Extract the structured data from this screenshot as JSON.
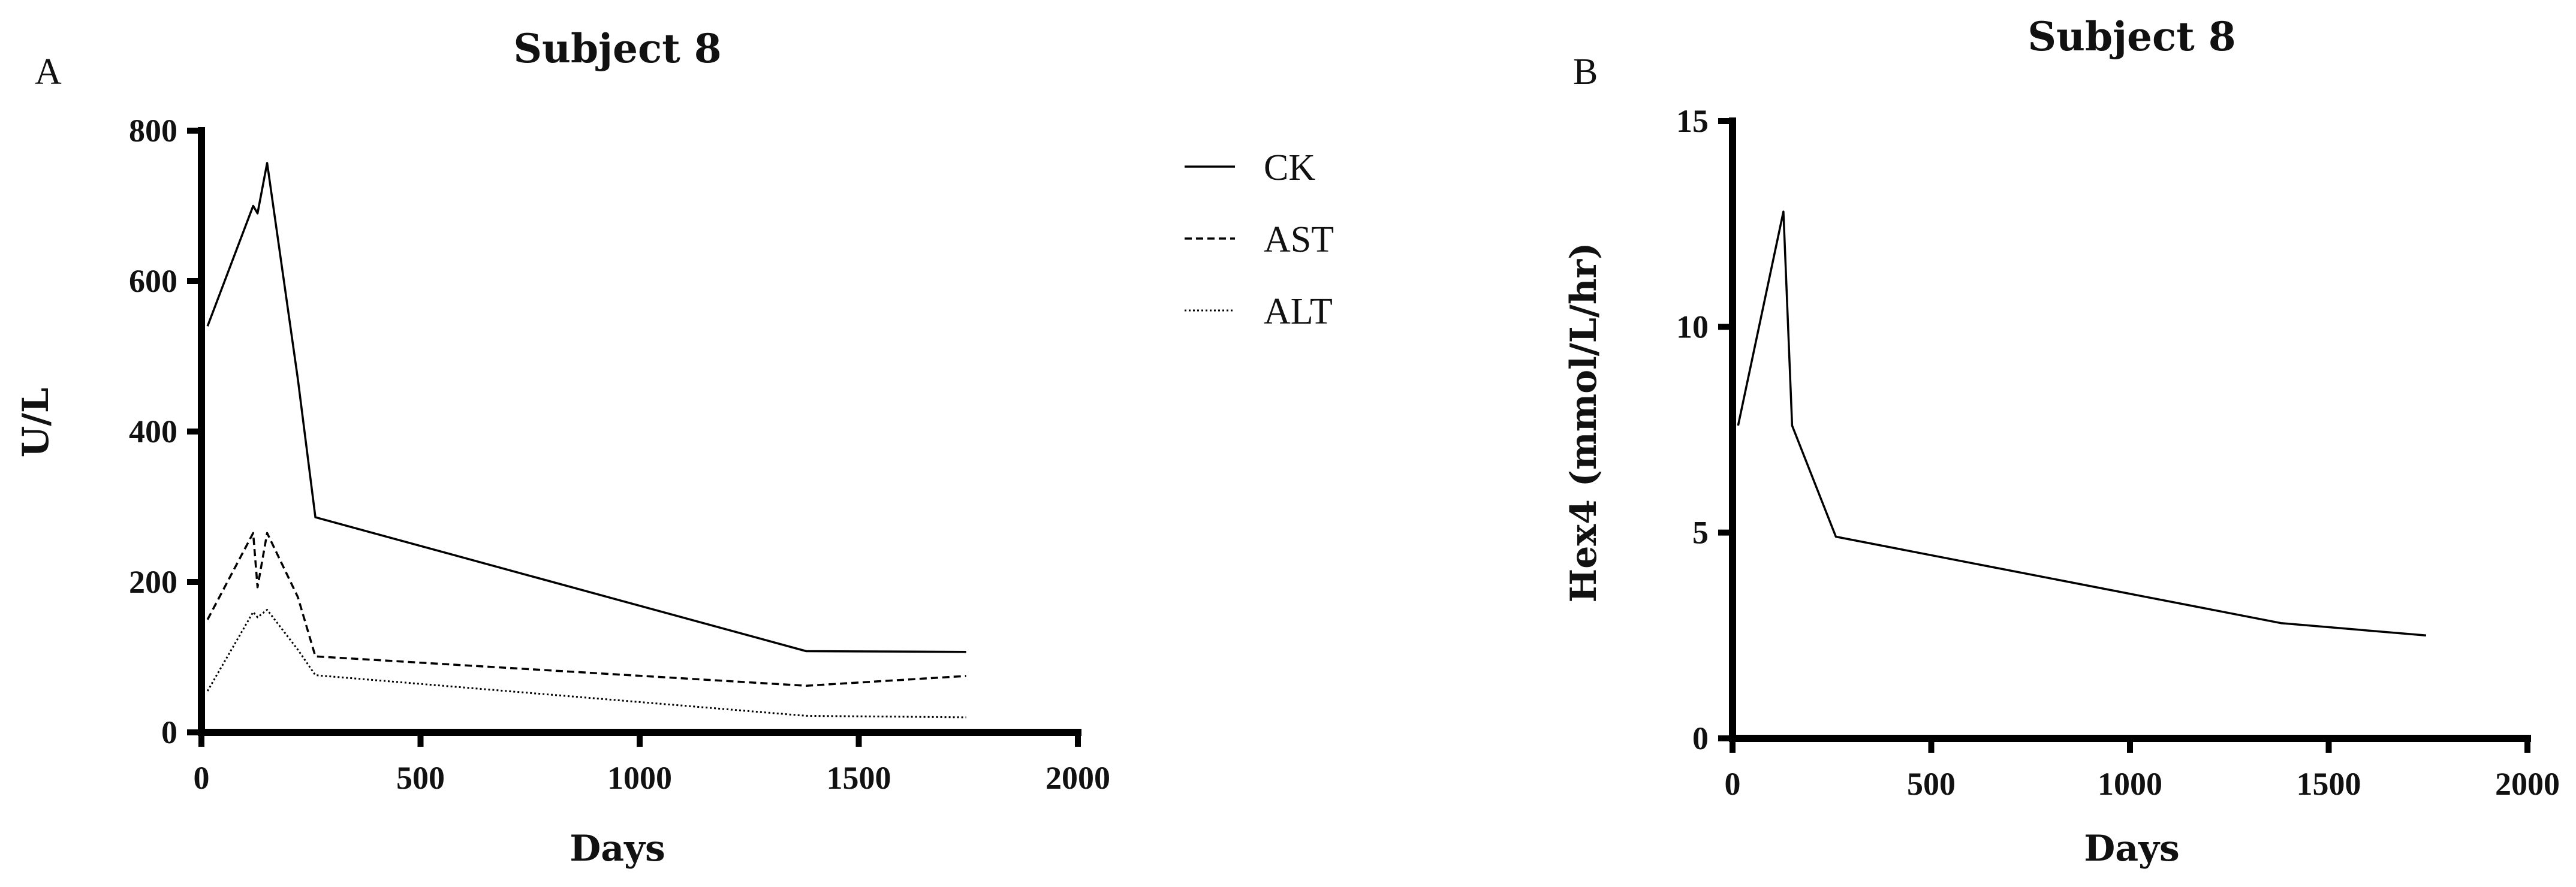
{
  "chart_data": [
    {
      "panel": "A",
      "type": "line",
      "title": "Subject 8",
      "xlabel": "Days",
      "ylabel": "U/L",
      "xlim": [
        0,
        2000
      ],
      "ylim": [
        0,
        800
      ],
      "xticks": [
        0,
        500,
        1000,
        1500,
        2000
      ],
      "yticks": [
        0,
        200,
        400,
        600,
        800
      ],
      "legend_position": "right",
      "series": [
        {
          "name": "CK",
          "style": "solid",
          "points": [
            [
              14,
              540
            ],
            [
              118,
              700
            ],
            [
              128,
              690
            ],
            [
              150,
              757
            ],
            [
              220,
              470
            ],
            [
              260,
              286
            ],
            [
              1380,
              108
            ],
            [
              1745,
              107
            ]
          ]
        },
        {
          "name": "AST",
          "style": "dashed",
          "points": [
            [
              14,
              150
            ],
            [
              118,
              265
            ],
            [
              128,
              193
            ],
            [
              150,
              265
            ],
            [
              220,
              180
            ],
            [
              260,
              101
            ],
            [
              1380,
              62
            ],
            [
              1745,
              75
            ]
          ]
        },
        {
          "name": "ALT",
          "style": "dotted",
          "points": [
            [
              14,
              55
            ],
            [
              118,
              160
            ],
            [
              128,
              153
            ],
            [
              150,
              163
            ],
            [
              220,
              110
            ],
            [
              260,
              76
            ],
            [
              1380,
              22
            ],
            [
              1745,
              20
            ]
          ]
        }
      ]
    },
    {
      "panel": "B",
      "type": "line",
      "title": "Subject 8",
      "xlabel": "Days",
      "ylabel": "Hex4 (mmol/L/hr)",
      "xlim": [
        0,
        2000
      ],
      "ylim": [
        0,
        15
      ],
      "xticks": [
        0,
        500,
        1000,
        1500,
        2000
      ],
      "yticks": [
        0,
        5,
        10,
        15
      ],
      "series": [
        {
          "name": "",
          "style": "solid",
          "points": [
            [
              14,
              7.6
            ],
            [
              128,
              12.8
            ],
            [
              150,
              7.6
            ],
            [
              260,
              4.9
            ],
            [
              1380,
              2.8
            ],
            [
              1745,
              2.5
            ]
          ]
        }
      ]
    }
  ]
}
